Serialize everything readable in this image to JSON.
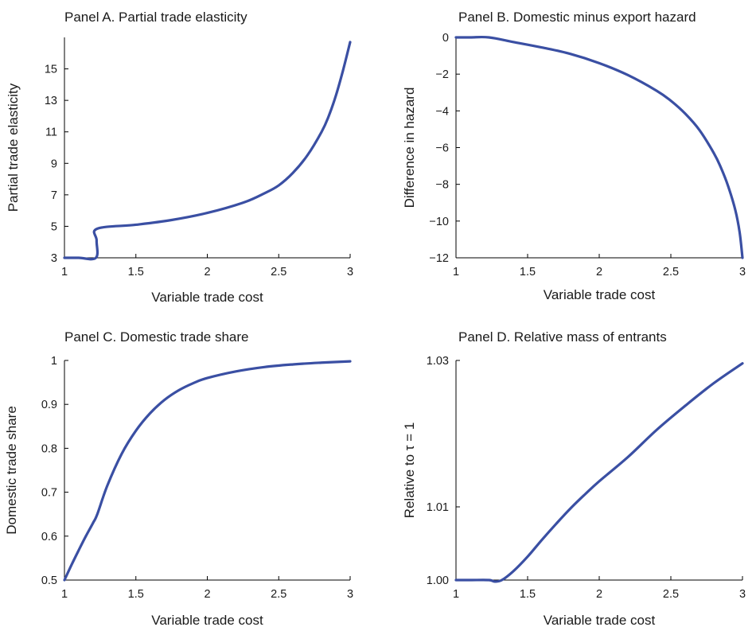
{
  "chart_data": [
    {
      "type": "line",
      "title": "Panel A. Partial trade elasticity",
      "xlabel": "Variable trade cost",
      "ylabel": "Partial trade elasticity",
      "xlim": [
        1,
        3
      ],
      "ylim": [
        3,
        17
      ],
      "xticks": [
        "1",
        "1.5",
        "2",
        "2.5",
        "3"
      ],
      "yticks": [
        "3",
        "5",
        "7",
        "9",
        "11",
        "13",
        "15"
      ],
      "series": [
        {
          "x": [
            1,
            1.1,
            1.22,
            1.225,
            1.23,
            1.5,
            1.75,
            2.0,
            2.25,
            2.4,
            2.5,
            2.6,
            2.7,
            2.8,
            2.85,
            2.9,
            2.95,
            3.0
          ],
          "y": [
            3,
            3,
            3,
            4.1,
            4.85,
            5.1,
            5.4,
            5.85,
            6.5,
            7.1,
            7.6,
            8.4,
            9.5,
            11.0,
            12.0,
            13.3,
            14.9,
            16.7
          ]
        }
      ],
      "color": "#3a4fa3"
    },
    {
      "type": "line",
      "title": "Panel B. Domestic minus export hazard",
      "xlabel": "Variable trade cost",
      "ylabel": "Difference in hazard",
      "xlim": [
        1,
        3
      ],
      "ylim": [
        -12,
        0
      ],
      "xticks": [
        "1",
        "1.5",
        "2",
        "2.5",
        "3"
      ],
      "yticks": [
        "0",
        "−2",
        "−4",
        "−6",
        "−8",
        "−10",
        "−12"
      ],
      "series": [
        {
          "x": [
            1,
            1.1,
            1.23,
            1.4,
            1.6,
            1.8,
            2.0,
            2.2,
            2.4,
            2.5,
            2.6,
            2.7,
            2.8,
            2.85,
            2.9,
            2.95,
            2.98,
            3.0
          ],
          "y": [
            0,
            0,
            0,
            -0.25,
            -0.55,
            -0.9,
            -1.4,
            -2.05,
            -2.9,
            -3.45,
            -4.15,
            -5.05,
            -6.3,
            -7.1,
            -8.1,
            -9.4,
            -10.6,
            -12.0
          ]
        }
      ],
      "color": "#3a4fa3"
    },
    {
      "type": "line",
      "title": "Panel C. Domestic trade share",
      "xlabel": "Variable trade cost",
      "ylabel": "Domestic trade share",
      "xlim": [
        1,
        3
      ],
      "ylim": [
        0.5,
        1
      ],
      "xticks": [
        "1",
        "1.5",
        "2",
        "2.5",
        "3"
      ],
      "yticks": [
        "0.5",
        "0.6",
        "0.7",
        "0.8",
        "0.9",
        "1"
      ],
      "series": [
        {
          "x": [
            1,
            1.05,
            1.1,
            1.15,
            1.2,
            1.23,
            1.3,
            1.4,
            1.5,
            1.6,
            1.7,
            1.8,
            1.9,
            2.0,
            2.2,
            2.4,
            2.6,
            2.8,
            3.0
          ],
          "y": [
            0.5,
            0.535,
            0.568,
            0.6,
            0.63,
            0.65,
            0.715,
            0.787,
            0.84,
            0.88,
            0.91,
            0.932,
            0.948,
            0.96,
            0.975,
            0.985,
            0.991,
            0.995,
            0.998
          ]
        }
      ],
      "color": "#3a4fa3"
    },
    {
      "type": "line",
      "title": "Panel D. Relative mass of entrants",
      "xlabel": "Variable trade cost",
      "ylabel": "Relative to τ = 1",
      "xlim": [
        1,
        3
      ],
      "ylim": [
        1.0,
        1.03
      ],
      "xticks": [
        "1",
        "1.5",
        "2",
        "2.5",
        "3"
      ],
      "yticks": [
        "1.00",
        "1.01",
        "1.03"
      ],
      "series": [
        {
          "x": [
            1,
            1.1,
            1.23,
            1.27,
            1.32,
            1.4,
            1.5,
            1.6,
            1.7,
            1.8,
            1.9,
            2.0,
            2.2,
            2.4,
            2.6,
            2.8,
            3.0
          ],
          "y": [
            1.0,
            1.0,
            1.0,
            0.9998,
            1.0,
            1.0012,
            1.0032,
            1.0055,
            1.0077,
            1.0098,
            1.0117,
            1.0135,
            1.0168,
            1.0205,
            1.0238,
            1.0269,
            1.0296
          ]
        }
      ],
      "color": "#3a4fa3"
    }
  ]
}
